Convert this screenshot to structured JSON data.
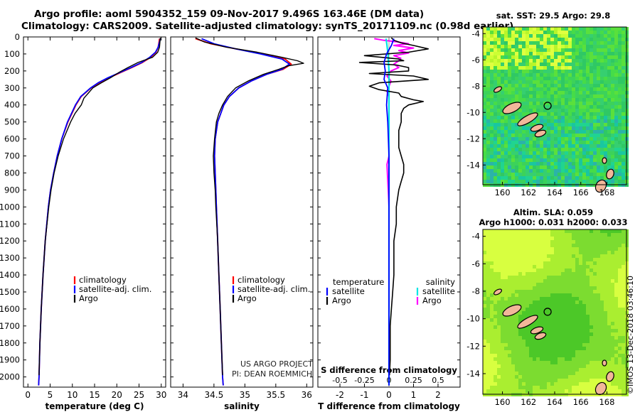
{
  "header": {
    "title_line1": "Argo profile: aoml 5904352_159 09-Nov-2017 9.496S 163.46E (DM data)",
    "title_line2": "Climatology: CARS2009. Satellite-adjusted climatology: synTS_20171109.nc (0.98d earlier)"
  },
  "colors": {
    "climatology": "#ff0000",
    "satellite": "#0000ff",
    "argo": "#000000",
    "sat_salinity": "#00e5e5",
    "argo_salinity": "#ff00ff"
  },
  "depth_axis": {
    "ticks": [
      "0",
      "100",
      "200",
      "300",
      "400",
      "500",
      "600",
      "700",
      "800",
      "900",
      "1000",
      "1100",
      "1200",
      "1300",
      "1400",
      "1500",
      "1600",
      "1700",
      "1800",
      "1900",
      "2000"
    ]
  },
  "chart_data": [
    {
      "type": "line",
      "name": "temperature-profile",
      "xlabel": "temperature (deg C)",
      "xlim": [
        -1,
        31
      ],
      "ylim": [
        0,
        2060
      ],
      "xticks": [
        "0",
        "5",
        "10",
        "15",
        "20",
        "25",
        "30"
      ],
      "xtick_values": [
        0,
        5,
        10,
        15,
        20,
        25,
        30
      ],
      "legend": [
        "climatology",
        "satellite-adj. clim.",
        "Argo"
      ],
      "series": [
        {
          "name": "climatology",
          "depth": [
            10,
            30,
            60,
            90,
            120,
            150,
            180,
            210,
            240,
            270,
            300,
            350,
            400,
            500,
            600,
            700,
            800,
            900,
            1000,
            1200,
            1400,
            1600,
            1800,
            2000,
            2050
          ],
          "values": [
            29.6,
            29.5,
            29.3,
            28.8,
            27.6,
            25.8,
            23.4,
            20.8,
            18.3,
            16.0,
            14.2,
            12.0,
            10.8,
            9.0,
            7.6,
            6.6,
            5.8,
            5.1,
            4.6,
            3.9,
            3.4,
            3.0,
            2.7,
            2.5,
            2.4
          ]
        },
        {
          "name": "satellite-adj. clim.",
          "depth": [
            10,
            30,
            60,
            90,
            120,
            150,
            180,
            210,
            240,
            270,
            300,
            350,
            400,
            500,
            600,
            700,
            800,
            900,
            1000,
            1200,
            1400,
            1600,
            1800,
            2000,
            2050
          ],
          "values": [
            29.8,
            29.6,
            29.3,
            28.7,
            27.4,
            25.6,
            23.2,
            20.6,
            18.0,
            15.8,
            14.1,
            11.9,
            10.7,
            8.9,
            7.6,
            6.6,
            5.8,
            5.1,
            4.6,
            3.9,
            3.4,
            3.0,
            2.7,
            2.5,
            2.4
          ]
        },
        {
          "name": "Argo",
          "depth": [
            5,
            30,
            60,
            90,
            120,
            150,
            180,
            210,
            240,
            270,
            300,
            330,
            360,
            400,
            450,
            500,
            600,
            700,
            800,
            900,
            1000,
            1200,
            1400,
            1600,
            1800,
            1990
          ],
          "values": [
            29.8,
            29.7,
            29.6,
            29.2,
            28.0,
            24.8,
            22.5,
            20.4,
            18.6,
            16.5,
            14.6,
            13.6,
            12.6,
            12.0,
            10.6,
            9.6,
            8.0,
            6.8,
            5.9,
            5.2,
            4.7,
            3.9,
            3.4,
            3.0,
            2.7,
            2.5
          ]
        }
      ]
    },
    {
      "type": "line",
      "name": "salinity-profile",
      "xlabel": "salinity",
      "xlim": [
        33.8,
        36.1
      ],
      "ylim": [
        0,
        2060
      ],
      "xticks": [
        "34",
        "34.5",
        "35",
        "35.5",
        "36"
      ],
      "xtick_values": [
        34,
        34.5,
        35,
        35.5,
        36
      ],
      "legend": [
        "climatology",
        "satellite-adj. clim.",
        "Argo"
      ],
      "annotations": [
        "US ARGO PROJECT",
        "PI: DEAN ROEMMICH"
      ],
      "series": [
        {
          "name": "climatology",
          "depth": [
            10,
            40,
            70,
            100,
            130,
            160,
            190,
            220,
            260,
            300,
            350,
            400,
            500,
            600,
            700,
            800,
            900,
            1000,
            1200,
            1400,
            1600,
            1800,
            2000,
            2050
          ],
          "values": [
            34.2,
            34.45,
            34.85,
            35.3,
            35.65,
            35.75,
            35.62,
            35.35,
            35.1,
            34.9,
            34.75,
            34.66,
            34.56,
            34.52,
            34.51,
            34.52,
            34.53,
            34.54,
            34.56,
            34.58,
            34.6,
            34.62,
            34.64,
            34.65
          ]
        },
        {
          "name": "satellite-adj. clim.",
          "depth": [
            10,
            40,
            70,
            100,
            130,
            160,
            190,
            220,
            260,
            300,
            350,
            400,
            500,
            600,
            700,
            800,
            900,
            1000,
            1200,
            1400,
            1600,
            1800,
            2000,
            2050
          ],
          "values": [
            34.3,
            34.5,
            34.85,
            35.25,
            35.6,
            35.72,
            35.6,
            35.35,
            35.1,
            34.9,
            34.75,
            34.66,
            34.56,
            34.52,
            34.51,
            34.52,
            34.53,
            34.54,
            34.56,
            34.58,
            34.6,
            34.62,
            34.64,
            34.65
          ]
        },
        {
          "name": "Argo",
          "depth": [
            5,
            30,
            60,
            90,
            120,
            140,
            155,
            170,
            190,
            220,
            260,
            300,
            350,
            400,
            450,
            500,
            600,
            700,
            800,
            900,
            1000,
            1200,
            1400,
            1600,
            1800,
            1990
          ],
          "values": [
            34.2,
            34.35,
            34.7,
            35.2,
            35.6,
            35.85,
            35.95,
            35.7,
            35.55,
            35.3,
            35.05,
            34.85,
            34.72,
            34.64,
            34.58,
            34.54,
            34.51,
            34.49,
            34.5,
            34.52,
            34.53,
            34.56,
            34.58,
            34.6,
            34.62,
            34.64
          ]
        }
      ]
    },
    {
      "type": "line",
      "name": "difference-profile",
      "xlabel": "T difference from climatology",
      "xlabel_top": "S difference from climatology",
      "xlim": [
        -2.9,
        2.9
      ],
      "ylim": [
        0,
        2060
      ],
      "xticks": [
        "-2",
        "-1",
        "0",
        "1",
        "2"
      ],
      "xtick_values": [
        -2,
        -1,
        0,
        1,
        2
      ],
      "sticks": [
        "-0.5",
        "-0.25",
        "0",
        "0.25",
        "0.5"
      ],
      "stick_values": [
        -0.5,
        -0.25,
        0,
        0.25,
        0.5
      ],
      "s_scale": 4,
      "legend_temperature": {
        "heading": "temperature",
        "items": [
          "satellite",
          "Argo"
        ]
      },
      "legend_salinity": {
        "heading": "salinity",
        "items": [
          "satellite",
          "Argo"
        ]
      },
      "series": [
        {
          "name": "T satellite",
          "depth": [
            10,
            50,
            100,
            150,
            200,
            250,
            300,
            400,
            500,
            700,
            1000,
            1500,
            2050
          ],
          "values": [
            0.2,
            0.1,
            -0.1,
            -0.2,
            -0.15,
            -0.2,
            -0.05,
            -0.1,
            -0.05,
            0,
            0,
            0,
            0
          ]
        },
        {
          "name": "T Argo",
          "depth": [
            5,
            20,
            35,
            50,
            70,
            90,
            110,
            130,
            140,
            150,
            165,
            180,
            200,
            215,
            230,
            250,
            270,
            290,
            310,
            330,
            350,
            370,
            380,
            400,
            420,
            450,
            500,
            550,
            600,
            650,
            700,
            750,
            800,
            850,
            900,
            1000,
            1100,
            1200,
            1300,
            1400,
            1500,
            1600,
            1700,
            1800,
            1900,
            1990
          ],
          "values": [
            0.1,
            0.2,
            0.5,
            1.0,
            1.6,
            0.8,
            -1.0,
            0.4,
            0.6,
            -1.2,
            0.3,
            0.8,
            0.8,
            -0.8,
            1.0,
            1.6,
            -0.4,
            -0.8,
            -0.4,
            0.4,
            0.5,
            1.0,
            1.4,
            0.8,
            0.6,
            0.5,
            0.5,
            0.4,
            0.4,
            0.4,
            0.5,
            0.6,
            0.6,
            0.5,
            0.4,
            0.3,
            0.3,
            0.2,
            0.2,
            0.2,
            0.15,
            0.1,
            0.05,
            0.05,
            0.05,
            0.02
          ]
        },
        {
          "name": "S satellite",
          "depth": [
            10,
            50,
            100,
            200,
            300,
            500,
            800,
            1200,
            2050
          ],
          "values": [
            -0.03,
            -0.02,
            -0.01,
            0,
            0,
            0,
            0,
            0,
            0
          ]
        },
        {
          "name": "S Argo",
          "depth": [
            10,
            20,
            30,
            40,
            50,
            65,
            80,
            95,
            110,
            125,
            140,
            160,
            180,
            200,
            230,
            260,
            290,
            320,
            350,
            400,
            500,
            700,
            750,
            1000,
            1500,
            2050
          ],
          "values": [
            -0.15,
            -0.05,
            0.1,
            0.2,
            0.05,
            0.25,
            0.1,
            0.2,
            0.05,
            0.12,
            0.1,
            0.05,
            0.1,
            0.02,
            -0.02,
            0.02,
            0,
            -0.02,
            0,
            0,
            0,
            0,
            -0.02,
            0,
            0,
            0
          ]
        }
      ]
    }
  ],
  "sst_map": {
    "title": "sat. SST: 29.5 Argo: 29.8",
    "xticks": [
      "160",
      "162",
      "164",
      "166",
      "168"
    ],
    "yticks": [
      "-4",
      "-6",
      "-8",
      "-10",
      "-12",
      "-14"
    ]
  },
  "sla_map": {
    "title_line1": "Altim. SLA: 0.059",
    "title_line2": "Argo h1000: 0.031 h2000: 0.033",
    "xticks": [
      "160",
      "162",
      "164",
      "166",
      "168"
    ],
    "yticks": [
      "-4",
      "-6",
      "-8",
      "-10",
      "-12",
      "-14"
    ]
  },
  "footer": {
    "stamp": "©IMOS 13-Dec-2018 03:46:10"
  }
}
